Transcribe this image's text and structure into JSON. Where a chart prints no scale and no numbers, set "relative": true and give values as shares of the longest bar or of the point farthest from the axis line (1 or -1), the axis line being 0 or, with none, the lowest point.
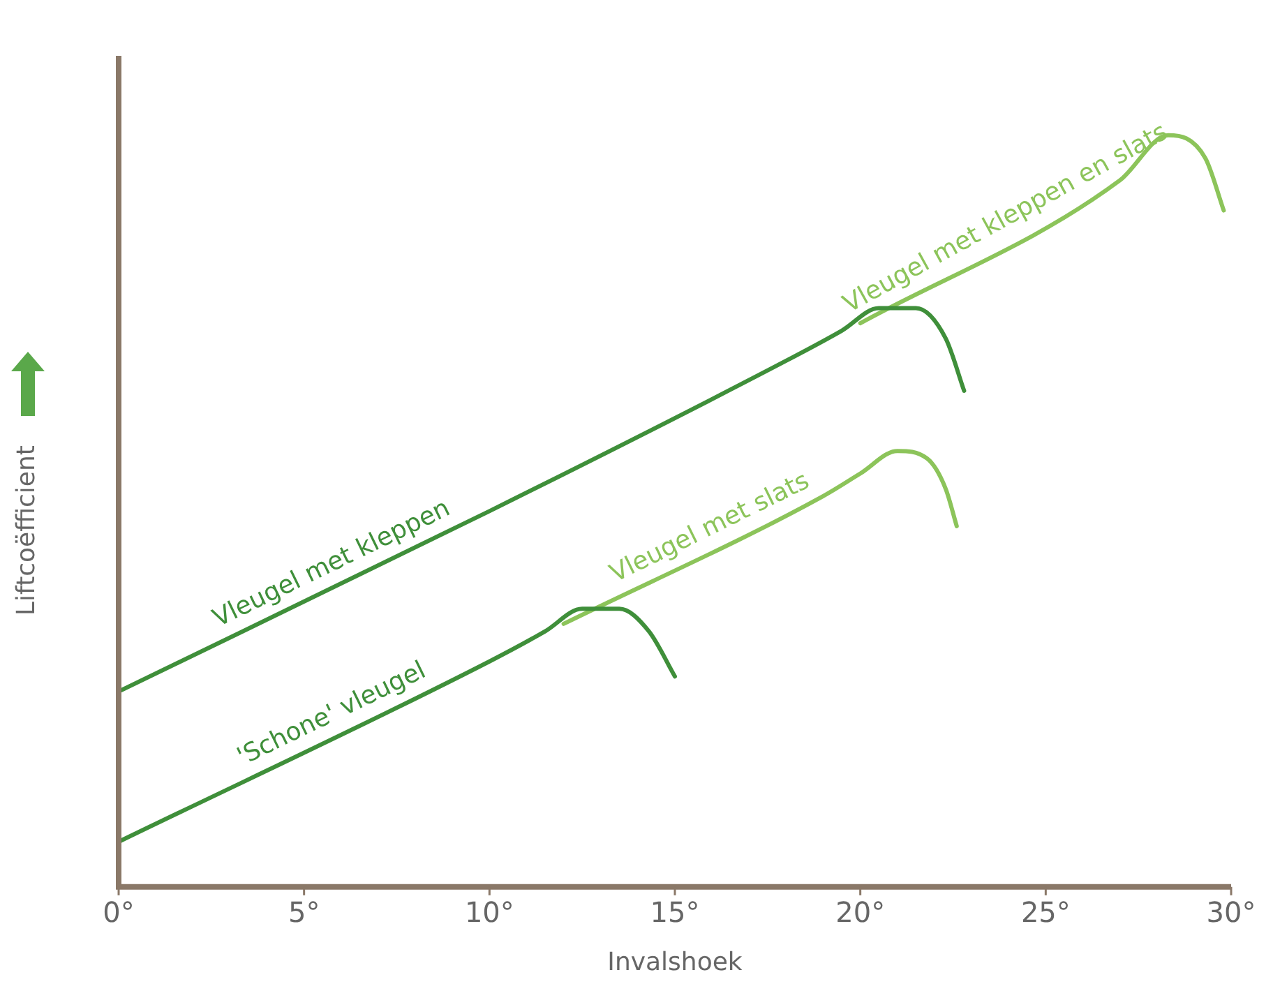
{
  "chart_data": {
    "type": "line",
    "relative": true,
    "xlabel": "Invalshoek",
    "ylabel": "Liftcoëfficient",
    "xlim": [
      0,
      30
    ],
    "xticks": [
      {
        "value": 0,
        "label": "0°"
      },
      {
        "value": 5,
        "label": "5°"
      },
      {
        "value": 10,
        "label": "10°"
      },
      {
        "value": 15,
        "label": "15°"
      },
      {
        "value": 20,
        "label": "20°"
      },
      {
        "value": 25,
        "label": "25°"
      },
      {
        "value": 30,
        "label": "30°"
      }
    ],
    "series": [
      {
        "name": "'Schone' vleugel",
        "color": "#3f8f3a",
        "x": [
          0,
          10,
          11.5,
          12.5,
          13.5,
          14.3,
          15
        ],
        "values": [
          0.06,
          0.3,
          0.34,
          0.37,
          0.37,
          0.34,
          0.28
        ]
      },
      {
        "name": "Vleugel met slats",
        "color": "#8cc45a",
        "x": [
          12,
          19,
          20,
          21,
          21.8,
          22.3,
          22.6
        ],
        "values": [
          0.35,
          0.52,
          0.55,
          0.58,
          0.57,
          0.53,
          0.48
        ]
      },
      {
        "name": "Vleugel met kleppen",
        "color": "#3f8f3a",
        "x": [
          0,
          10,
          18,
          19.5,
          20.5,
          21.5,
          22.3,
          22.8
        ],
        "values": [
          0.26,
          0.5,
          0.7,
          0.74,
          0.77,
          0.77,
          0.73,
          0.66
        ]
      },
      {
        "name": "Vleugel met kleppen en slats",
        "color": "#8cc45a",
        "x": [
          20,
          27,
          28.3,
          29.3,
          29.8
        ],
        "values": [
          0.75,
          0.94,
          1.0,
          0.97,
          0.9
        ]
      }
    ],
    "tick_labels": "x",
    "grid": false,
    "legend": false,
    "marker": "none",
    "line_style": "solid"
  }
}
